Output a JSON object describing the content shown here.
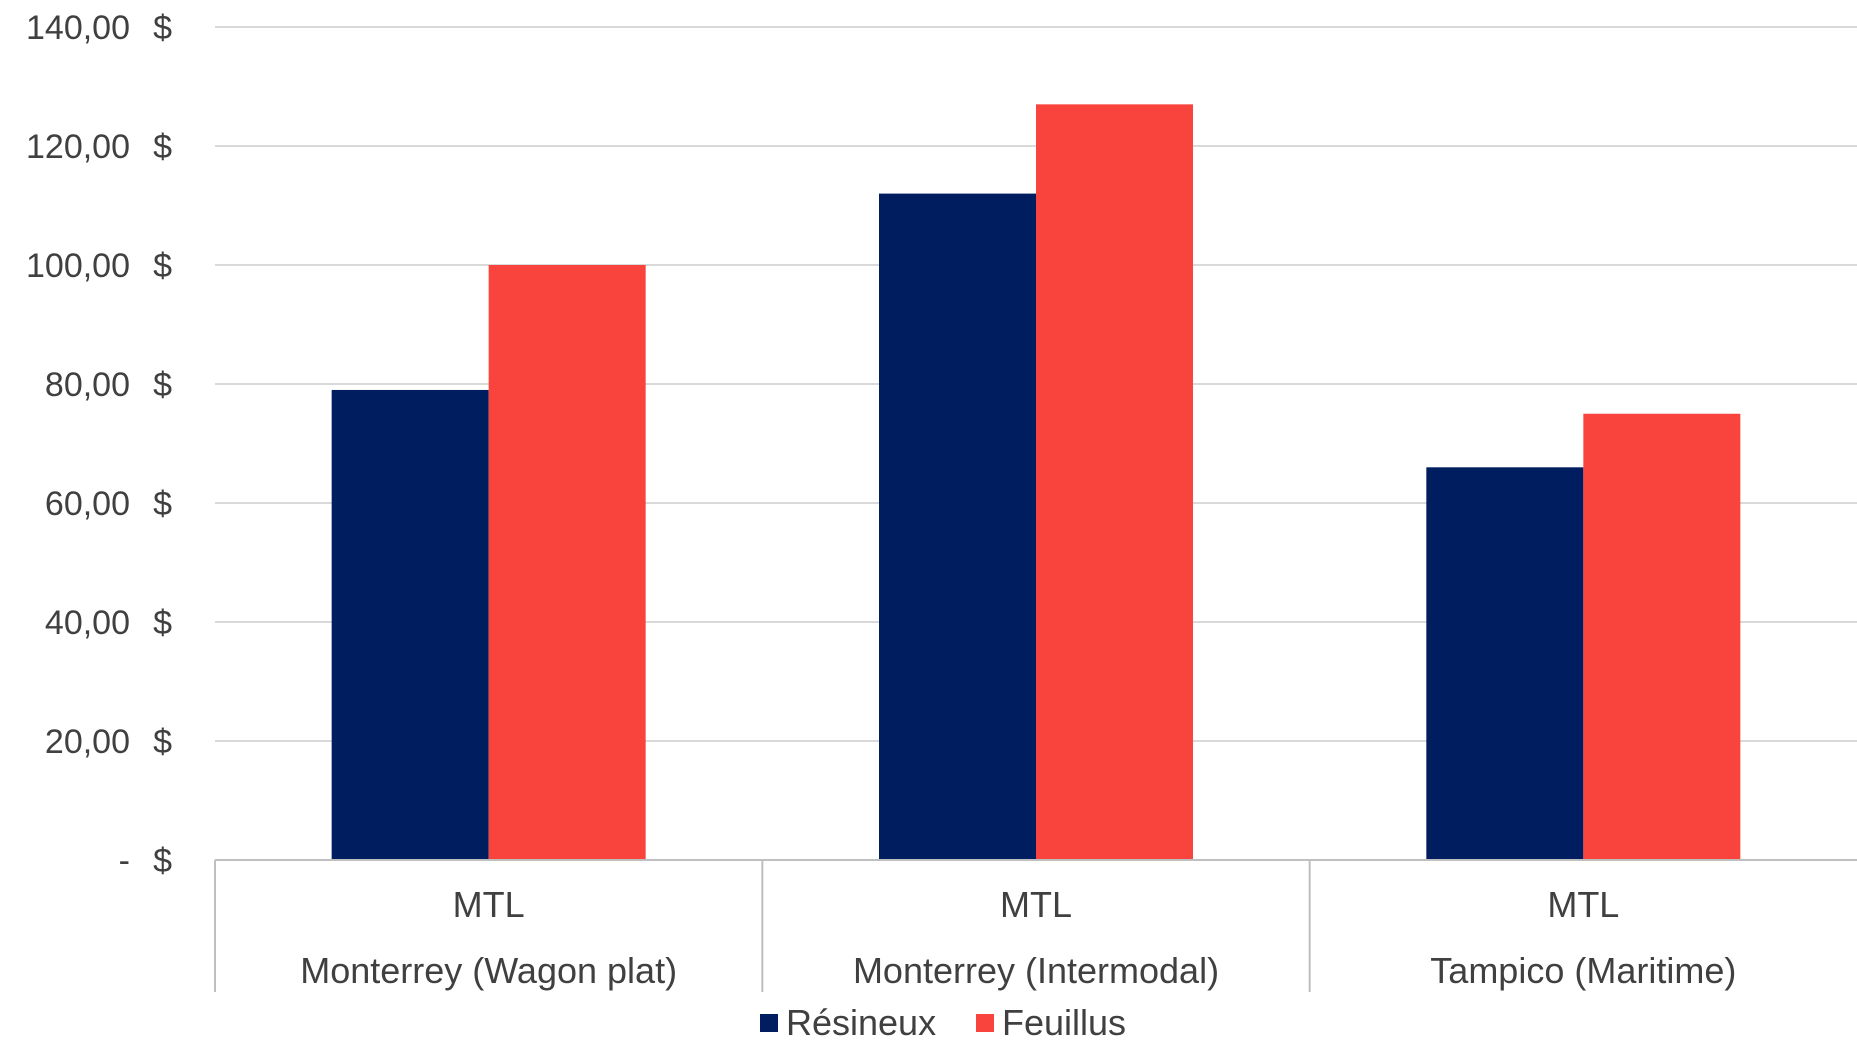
{
  "chart_data": {
    "type": "bar",
    "title": "",
    "xlabel": "",
    "ylabel": "",
    "ylim": [
      0,
      140
    ],
    "grid": true,
    "legend_position": "bottom",
    "y_ticks": [
      {
        "value": 0,
        "label": "-",
        "currency": "$"
      },
      {
        "value": 20,
        "label": "20,00",
        "currency": "$"
      },
      {
        "value": 40,
        "label": "40,00",
        "currency": "$"
      },
      {
        "value": 60,
        "label": "60,00",
        "currency": "$"
      },
      {
        "value": 80,
        "label": "80,00",
        "currency": "$"
      },
      {
        "value": 100,
        "label": "100,00",
        "currency": "$"
      },
      {
        "value": 120,
        "label": "120,00",
        "currency": "$"
      },
      {
        "value": 140,
        "label": "140,00",
        "currency": "$"
      }
    ],
    "categories": [
      {
        "line1": "MTL",
        "line2": "Monterrey (Wagon plat)"
      },
      {
        "line1": "MTL",
        "line2": "Monterrey (Intermodal)"
      },
      {
        "line1": "MTL",
        "line2": "Tampico (Maritime)"
      }
    ],
    "series": [
      {
        "name": "Résineux",
        "color": "#001e5f",
        "values": [
          79,
          112,
          66
        ]
      },
      {
        "name": "Feuillus",
        "color": "#f9433d",
        "values": [
          100,
          127,
          75
        ]
      }
    ]
  }
}
